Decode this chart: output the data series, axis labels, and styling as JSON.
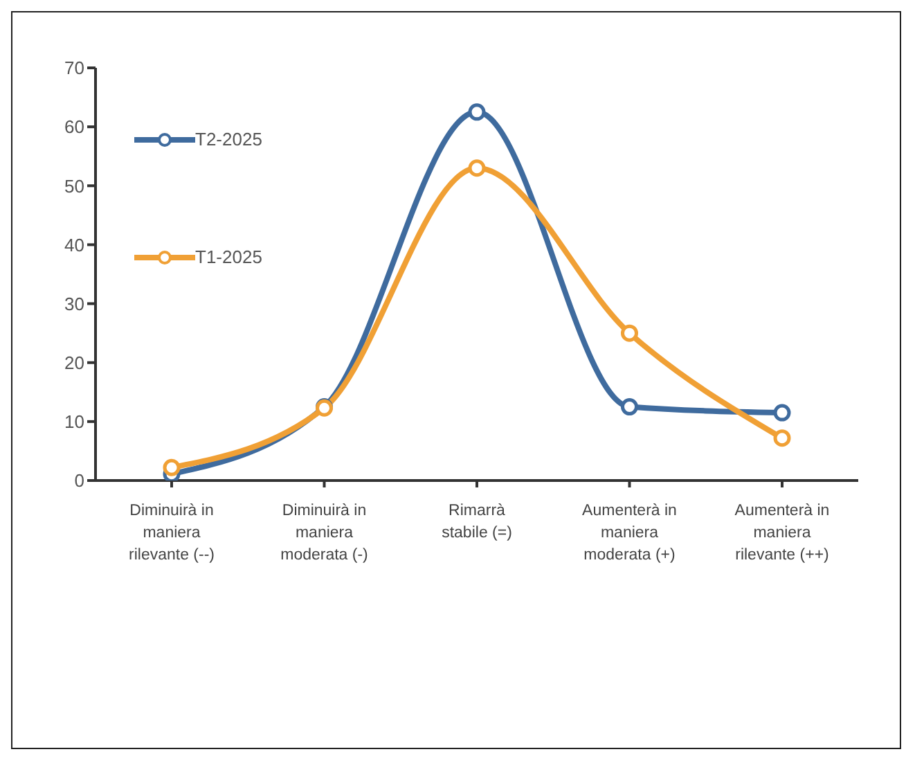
{
  "chart_data": {
    "type": "line",
    "categories": [
      "Diminuirà in maniera rilevante (--)",
      "Diminuirà in maniera moderata (-)",
      "Rimarrà stabile (=)",
      "Aumenterà in maniera moderata (+)",
      "Aumenterà in maniera rilevante (++)"
    ],
    "series": [
      {
        "name": "T2-2025",
        "color": "#3f6b9e",
        "values": [
          1.1,
          12.5,
          62.5,
          12.5,
          11.5
        ]
      },
      {
        "name": "T1-2025",
        "color": "#f0a035",
        "values": [
          2.2,
          12.3,
          53,
          25,
          7.2
        ]
      }
    ],
    "ylim": [
      0,
      70
    ],
    "yticks": [
      0,
      10,
      20,
      30,
      40,
      50,
      60,
      70
    ],
    "grid": false,
    "legend": "top left",
    "marker": "circle",
    "line_style": "solid"
  }
}
